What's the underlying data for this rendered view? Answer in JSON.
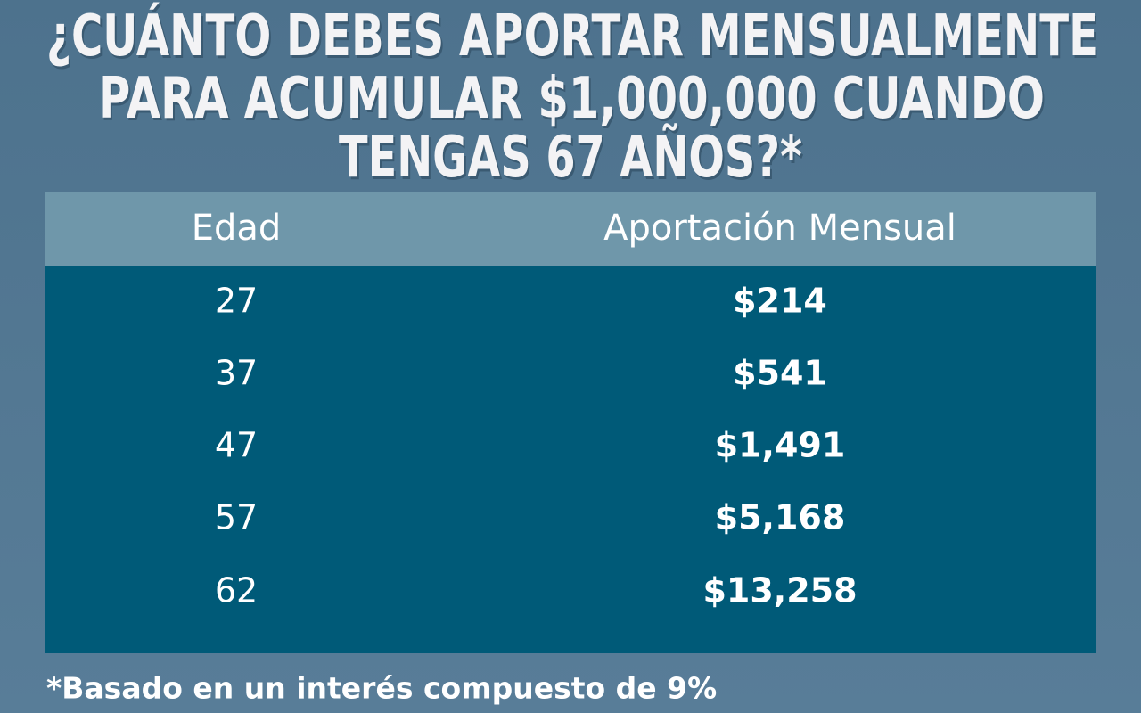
{
  "title_lines": [
    "¿CUÁNTO DEBES APORTAR MENSUALMENTE",
    "PARA ACUMULAR $1,000,000 CUANDO",
    "TENGAS 67 AÑOS?*"
  ],
  "table": {
    "header": [
      "Edad",
      "Aportación Mensual"
    ],
    "rows": [
      [
        "27",
        "$214"
      ],
      [
        "37",
        "$541"
      ],
      [
        "47",
        "$1,491"
      ],
      [
        "57",
        "$5,168"
      ],
      [
        "62",
        "$13,258"
      ]
    ]
  },
  "footnote": "*Basado en un interés compuesto de 9%"
}
